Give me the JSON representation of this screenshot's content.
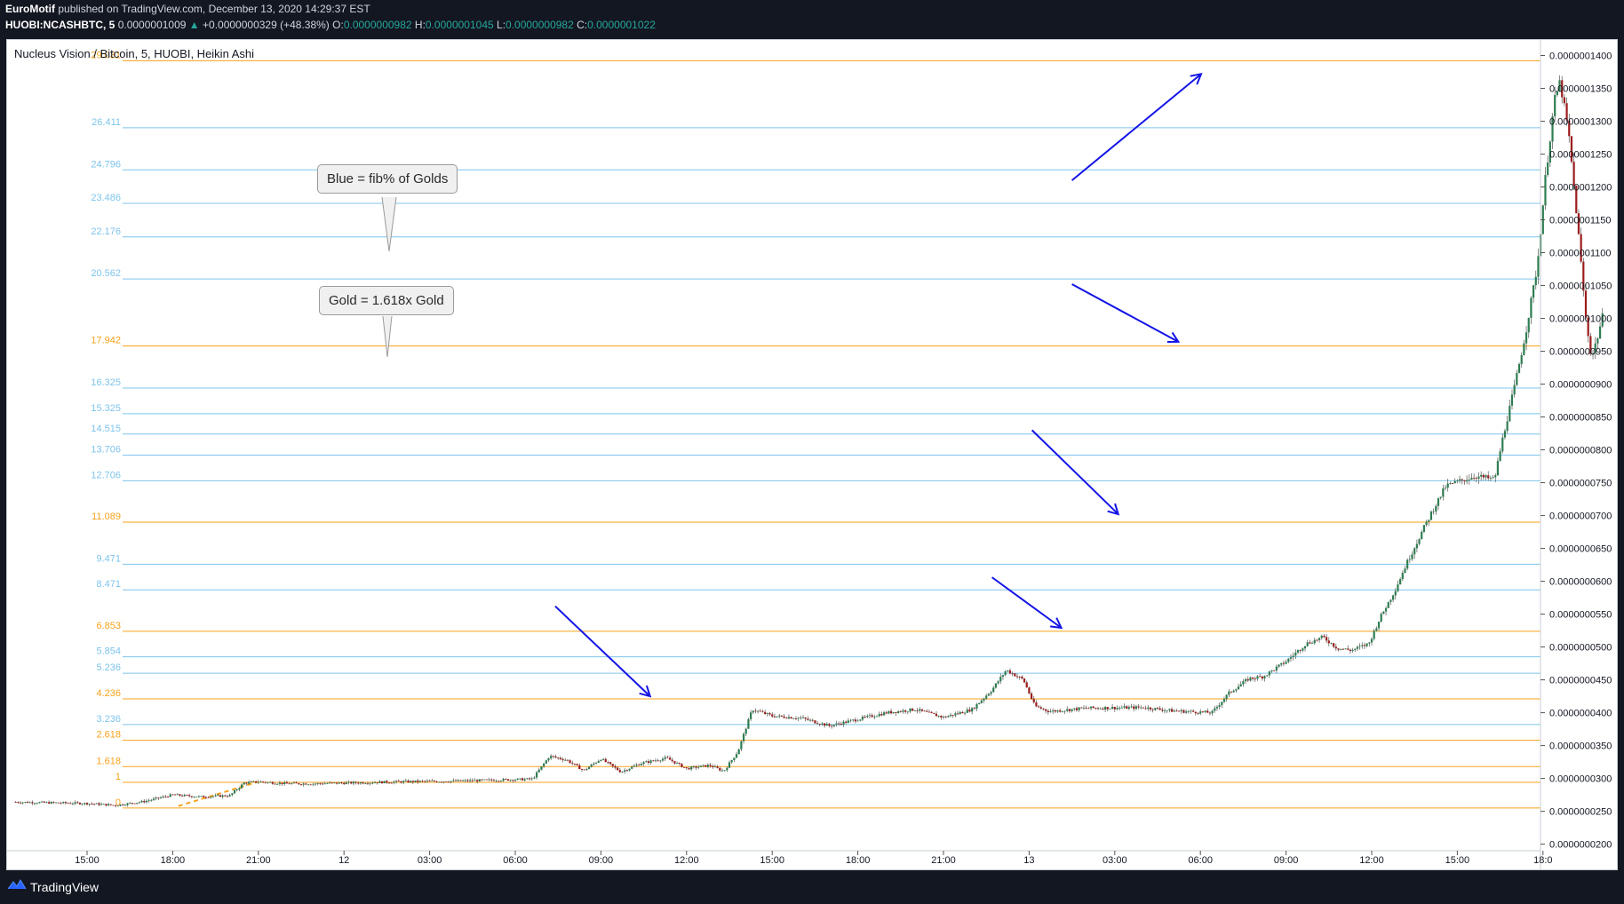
{
  "header": {
    "author": "EuroMotif",
    "published": "published on TradingView.com, December 13, 2020 14:29:37 EST",
    "symbol": "HUOBI:NCASHBTC, 5",
    "last": "0.0000001009",
    "change_arrow": "▲",
    "change": "+0.0000000329 (+48.38%)",
    "o_label": "O:",
    "o_value": "0.0000000982",
    "h_label": "H:",
    "h_value": "0.0000001045",
    "l_label": "L:",
    "l_value": "0.0000000982",
    "c_label": "C:",
    "c_value": "0.0000001022"
  },
  "chart_title": "Nucleus Vision / Bitcoin, 5, HUOBI, Heikin Ashi",
  "callouts": {
    "blue": "Blue = fib% of Golds",
    "gold": "Gold = 1.618x Gold"
  },
  "footer": {
    "brand": "TradingView"
  },
  "colors": {
    "gold_line": "#f7a21b",
    "blue_line": "#7ec4ec",
    "up_candle": "#2e7d51",
    "down_candle": "#9c1c1c",
    "arrow": "#1414e6",
    "header_bg": "#131722"
  },
  "chart_data": {
    "type": "candlestick",
    "y_scale": "linear",
    "ylim": [
      1.9e-08,
      1.425e-07
    ],
    "y_ticks": [
      "0.0000000200",
      "0.0000000250",
      "0.0000000300",
      "0.0000000350",
      "0.0000000400",
      "0.0000000450",
      "0.0000000500",
      "0.0000000550",
      "0.0000000600",
      "0.0000000650",
      "0.0000000700",
      "0.0000000750",
      "0.0000000800",
      "0.0000000850",
      "0.0000000900",
      "0.0000000950",
      "0.0000001000",
      "0.0000001050",
      "0.0000001100",
      "0.0000001150",
      "0.0000001200",
      "0.0000001250",
      "0.0000001300",
      "0.0000001350",
      "0.0000001400"
    ],
    "x_ticks": [
      "15:00",
      "18:00",
      "21:00",
      "12",
      "03:00",
      "06:00",
      "09:00",
      "12:00",
      "15:00",
      "18:00",
      "21:00",
      "13",
      "03:00",
      "06:00",
      "09:00",
      "12:00",
      "15:00",
      "18:0"
    ],
    "x_range_hours": [
      -2.5,
      45.7
    ],
    "fib_levels": [
      {
        "label": "0",
        "price": 2.55e-08,
        "kind": "gold"
      },
      {
        "label": "1",
        "price": 2.94e-08,
        "kind": "gold"
      },
      {
        "label": "1.618",
        "price": 3.18e-08,
        "kind": "gold"
      },
      {
        "label": "2.618",
        "price": 3.58e-08,
        "kind": "gold"
      },
      {
        "label": "3.236",
        "price": 3.82e-08,
        "kind": "blue"
      },
      {
        "label": "4.236",
        "price": 4.21e-08,
        "kind": "gold"
      },
      {
        "label": "5.236",
        "price": 4.6e-08,
        "kind": "blue"
      },
      {
        "label": "5.854",
        "price": 4.85e-08,
        "kind": "blue"
      },
      {
        "label": "6.853",
        "price": 5.24e-08,
        "kind": "gold"
      },
      {
        "label": "8.471",
        "price": 5.87e-08,
        "kind": "blue"
      },
      {
        "label": "9.471",
        "price": 6.26e-08,
        "kind": "blue"
      },
      {
        "label": "11.089",
        "price": 6.9e-08,
        "kind": "gold"
      },
      {
        "label": "12.706",
        "price": 7.53e-08,
        "kind": "blue"
      },
      {
        "label": "13.706",
        "price": 7.92e-08,
        "kind": "blue"
      },
      {
        "label": "14.515",
        "price": 8.24e-08,
        "kind": "blue"
      },
      {
        "label": "15.325",
        "price": 8.55e-08,
        "kind": "blue"
      },
      {
        "label": "16.325",
        "price": 8.94e-08,
        "kind": "blue"
      },
      {
        "label": "17.942",
        "price": 9.58e-08,
        "kind": "gold"
      },
      {
        "label": "20.562",
        "price": 1.06e-07,
        "kind": "blue"
      },
      {
        "label": "22.176",
        "price": 1.124e-07,
        "kind": "blue"
      },
      {
        "label": "23.486",
        "price": 1.175e-07,
        "kind": "blue"
      },
      {
        "label": "24.796",
        "price": 1.226e-07,
        "kind": "blue"
      },
      {
        "label": "26.411",
        "price": 1.29e-07,
        "kind": "blue"
      },
      {
        "label": "29.031",
        "price": 1.392e-07,
        "kind": "gold"
      }
    ],
    "price_path": [
      [
        -2.5,
        26.4
      ],
      [
        0,
        26.2
      ],
      [
        1,
        25.9
      ],
      [
        2,
        26.5
      ],
      [
        3,
        27.5
      ],
      [
        4,
        27.2
      ],
      [
        5,
        27.4
      ],
      [
        5.5,
        29.3
      ],
      [
        6,
        29.5
      ],
      [
        7,
        29.2
      ],
      [
        8,
        29.2
      ],
      [
        9,
        29.3
      ],
      [
        11,
        29.5
      ],
      [
        13,
        29.6
      ],
      [
        15.6,
        29.9
      ],
      [
        16.2,
        33.4
      ],
      [
        16.8,
        32.8
      ],
      [
        17.4,
        31.2
      ],
      [
        18,
        33.0
      ],
      [
        18.7,
        31.0
      ],
      [
        19.4,
        32.3
      ],
      [
        20.3,
        33.1
      ],
      [
        21,
        31.5
      ],
      [
        21.8,
        32.0
      ],
      [
        22.3,
        31.1
      ],
      [
        22.8,
        34.1
      ],
      [
        23.3,
        40.5
      ],
      [
        24,
        39.5
      ],
      [
        25,
        39.2
      ],
      [
        26,
        38.0
      ],
      [
        27,
        39.0
      ],
      [
        28,
        40.0
      ],
      [
        29,
        40.5
      ],
      [
        30,
        39.3
      ],
      [
        31,
        40.5
      ],
      [
        31.7,
        43.5
      ],
      [
        32.2,
        46.5
      ],
      [
        32.8,
        45.0
      ],
      [
        33.2,
        41.0
      ],
      [
        33.7,
        40.2
      ],
      [
        35,
        40.7
      ],
      [
        37,
        40.8
      ],
      [
        38,
        40.3
      ],
      [
        39.4,
        40.0
      ],
      [
        40,
        43.0
      ],
      [
        40.7,
        45.2
      ],
      [
        41.2,
        45.5
      ],
      [
        42,
        47.8
      ],
      [
        42.7,
        50.5
      ],
      [
        43.3,
        51.5
      ],
      [
        43.8,
        49.8
      ],
      [
        44.3,
        49.5
      ],
      [
        44.9,
        50.5
      ],
      [
        45.3,
        54.5
      ],
      [
        45.8,
        58.5
      ],
      [
        46.2,
        62.5
      ],
      [
        46.7,
        67.0
      ],
      [
        47.1,
        70.5
      ],
      [
        47.6,
        74.5
      ],
      [
        48.6,
        76.0
      ],
      [
        49.3,
        75.5
      ],
      [
        49.6,
        82.0
      ],
      [
        50,
        89.5
      ],
      [
        50.4,
        98.0
      ],
      [
        50.8,
        108.0
      ],
      [
        51.1,
        122.0
      ],
      [
        51.4,
        133.0
      ],
      [
        51.6,
        136.0
      ],
      [
        51.9,
        128.0
      ],
      [
        52.2,
        115.0
      ],
      [
        52.5,
        100.0
      ],
      [
        52.7,
        94.0
      ],
      [
        52.9,
        97.0
      ],
      [
        53.1,
        100.5
      ]
    ],
    "x_start_hours": -2.5,
    "x_end_hours": 53.1,
    "arrows": [
      {
        "from_hours": 34.5,
        "from_price": 1.21e-07,
        "to_hours": 39.0,
        "to_price": 1.371e-07
      },
      {
        "from_hours": 34.5,
        "from_price": 1.052e-07,
        "to_hours": 38.2,
        "to_price": 9.65e-08
      },
      {
        "from_hours": 33.1,
        "from_price": 8.3e-08,
        "to_hours": 36.1,
        "to_price": 7.03e-08
      },
      {
        "from_hours": 31.7,
        "from_price": 6.06e-08,
        "to_hours": 34.1,
        "to_price": 5.3e-08
      },
      {
        "from_hours": 16.4,
        "from_price": 5.62e-08,
        "to_hours": 19.7,
        "to_price": 4.26e-08
      }
    ],
    "dashed_segment": {
      "from_hours": 3.2,
      "from_price": 2.58e-08,
      "to_hours": 6.0,
      "to_price": 2.95e-08
    }
  }
}
